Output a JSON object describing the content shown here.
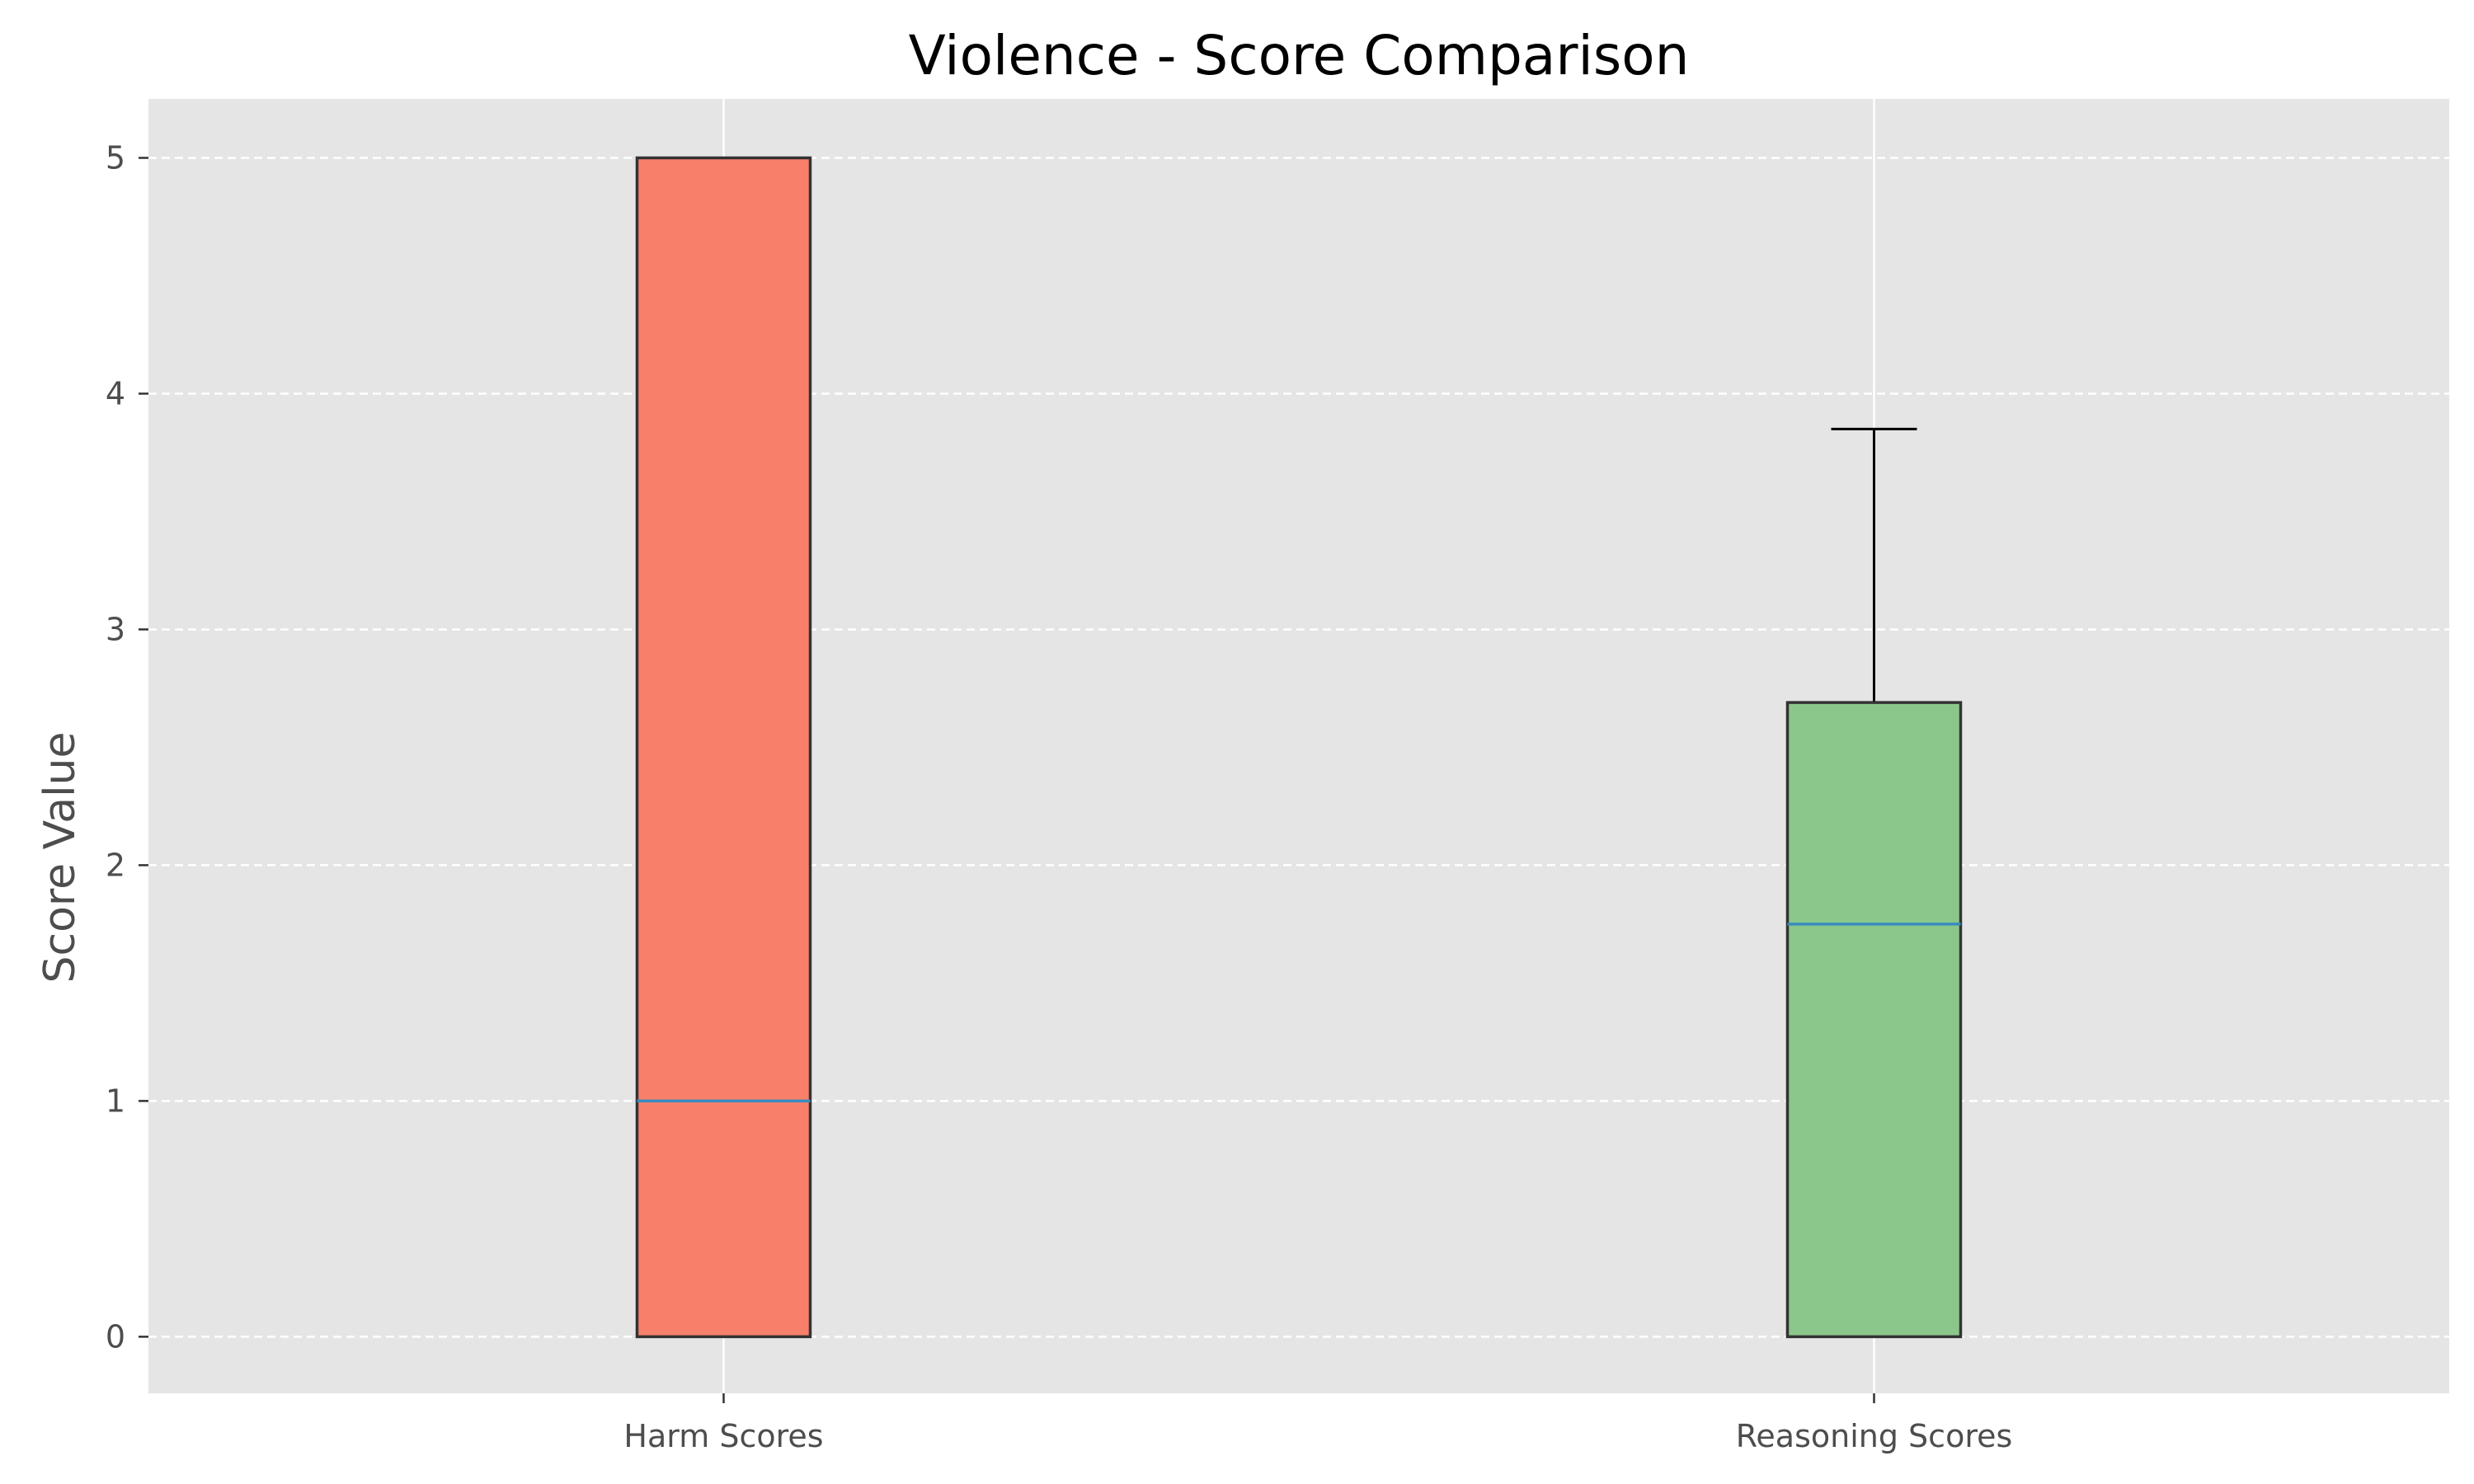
{
  "chart_data": {
    "type": "boxplot",
    "title": "Violence - Score Comparison",
    "xlabel": "",
    "ylabel": "Score Value",
    "categories": [
      "Harm Scores",
      "Reasoning Scores"
    ],
    "series": [
      {
        "category": "Harm Scores",
        "whisker_low": 0,
        "q1": 0,
        "median": 1,
        "q3": 5,
        "whisker_high": 5,
        "color": "#f8806a"
      },
      {
        "category": "Reasoning Scores",
        "whisker_low": 0,
        "q1": 0,
        "median": 1.75,
        "q3": 2.69,
        "whisker_high": 3.85,
        "color": "#8bc78a"
      }
    ],
    "ylim": [
      -0.24,
      5.25
    ],
    "yticks": [
      0,
      1,
      2,
      3,
      4,
      5
    ],
    "grid": true,
    "style": "ggplot",
    "colors": {
      "background": "#e5e5e5",
      "grid": "#ffffff",
      "median": "#3a8bbf",
      "box_edge": "#333333",
      "whisker": "#000000"
    }
  }
}
